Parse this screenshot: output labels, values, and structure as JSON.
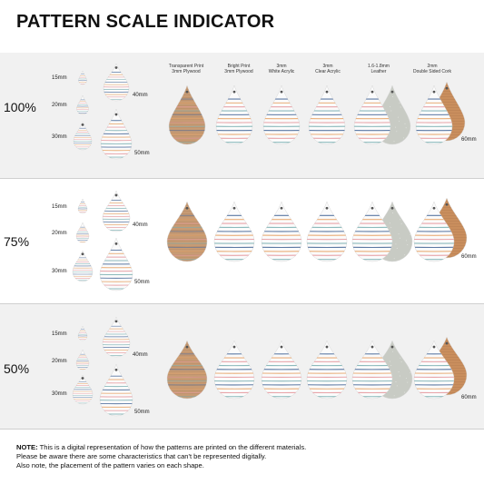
{
  "title": "PATTERN SCALE INDICATOR",
  "scales": [
    "100%",
    "75%",
    "50%"
  ],
  "sizes": [
    "15mm",
    "20mm",
    "30mm",
    "40mm",
    "50mm",
    "60mm"
  ],
  "materials": [
    {
      "line1": "Transparent Print",
      "line2": "3mm Plywood"
    },
    {
      "line1": "Bright Print",
      "line2": "3mm Plywood"
    },
    {
      "line1": "3mm",
      "line2": "White Acrylic"
    },
    {
      "line1": "3mm",
      "line2": "Clear Acrylic"
    },
    {
      "line1": "1.6-1.8mm",
      "line2": "Leather"
    },
    {
      "line1": "2mm",
      "line2": "Double Sided Cork"
    }
  ],
  "note": {
    "label": "NOTE:",
    "line1": " This is a digital representation of how the patterns are printed on the different materials.",
    "line2": "Please be aware there are some characteristics that can't be represented digitally.",
    "line3": "Also note, the placement of the pattern varies on each shape."
  },
  "colors": {
    "stripe_blue": "#4a6a9a",
    "stripe_orange": "#e8a56a",
    "stripe_pink": "#e69aa0",
    "stripe_teal": "#7fb3b5",
    "plywood": "#c79b74",
    "leather_grey": "#c8cbc4",
    "cork": "#c98e5d"
  }
}
